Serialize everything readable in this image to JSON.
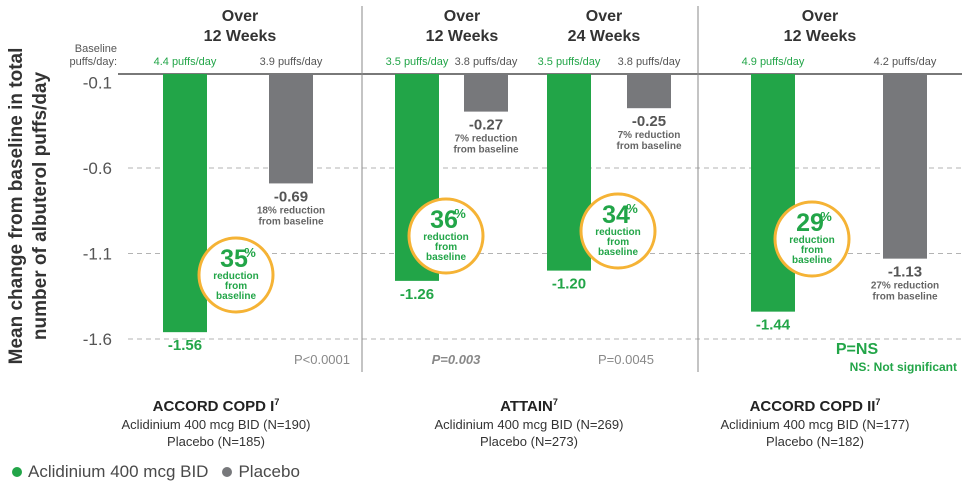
{
  "colors": {
    "aclidinium": "#22a548",
    "placebo": "#77787b",
    "badge": "#f5b335",
    "axis": "#4d4d4d",
    "grid": "#b3b3b3"
  },
  "chart_data": {
    "type": "bar",
    "ylabel_lines": [
      "Mean change from baseline in total",
      "number of albuterol puffs/day"
    ],
    "ylim": [
      -1.6,
      -0.05
    ],
    "y_ticks": [
      "-0.1",
      "-0.6",
      "-1.1",
      "-1.6"
    ],
    "y_tick_values": [
      -0.1,
      -0.6,
      -1.1,
      -1.6
    ],
    "grid": "dashed",
    "baseline_label_lines": [
      "Baseline",
      "puffs/day:"
    ],
    "legend_position": "bottom-left",
    "legend": [
      "Aclidinium 400 mcg BID",
      "Placebo"
    ],
    "panels": [
      {
        "study": "ACCORD COPD I",
        "study_sup": "7",
        "arm_lines": [
          "Aclidinium 400 mcg BID (N=190)",
          "Placebo (N=185)"
        ],
        "p_value": "P<0.0001",
        "groups": [
          {
            "period_lines": [
              "Over",
              "12 Weeks"
            ],
            "bars": [
              {
                "series": "Aclidinium 400 mcg BID",
                "value": -1.56,
                "value_label": "-1.56",
                "baseline": "4.4 puffs/day",
                "reduction_pct": "35%",
                "reduction_lines": [
                  "reduction",
                  "from",
                  "baseline"
                ]
              },
              {
                "series": "Placebo",
                "value": -0.69,
                "value_label": "-0.69",
                "baseline": "3.9 puffs/day",
                "note_lines": [
                  "18% reduction",
                  "from baseline"
                ]
              }
            ]
          }
        ]
      },
      {
        "study": "ATTAIN",
        "study_sup": "7",
        "arm_lines": [
          "Aclidinium 400 mcg BID (N=269)",
          "Placebo (N=273)"
        ],
        "groups": [
          {
            "period_lines": [
              "Over",
              "12 Weeks"
            ],
            "p_value": "P=0.003",
            "bars": [
              {
                "series": "Aclidinium 400 mcg BID",
                "value": -1.26,
                "value_label": "-1.26",
                "baseline": "3.5 puffs/day",
                "reduction_pct": "36%",
                "reduction_lines": [
                  "reduction",
                  "from",
                  "baseline"
                ]
              },
              {
                "series": "Placebo",
                "value": -0.27,
                "value_label": "-0.27",
                "baseline": "3.8 puffs/day",
                "note_lines": [
                  "7% reduction",
                  "from baseline"
                ]
              }
            ]
          },
          {
            "period_lines": [
              "Over",
              "24 Weeks"
            ],
            "p_value": "P=0.0045",
            "bars": [
              {
                "series": "Aclidinium 400 mcg BID",
                "value": -1.2,
                "value_label": "-1.20",
                "baseline": "3.5 puffs/day",
                "reduction_pct": "34%",
                "reduction_lines": [
                  "reduction",
                  "from",
                  "baseline"
                ]
              },
              {
                "series": "Placebo",
                "value": -0.25,
                "value_label": "-0.25",
                "baseline": "3.8 puffs/day",
                "note_lines": [
                  "7% reduction",
                  "from baseline"
                ]
              }
            ]
          }
        ]
      },
      {
        "study": "ACCORD COPD II",
        "study_sup": "7",
        "arm_lines": [
          "Aclidinium 400 mcg BID (N=177)",
          "Placebo (N=182)"
        ],
        "p_value": "P=NS",
        "p_note": "NS: Not significant",
        "groups": [
          {
            "period_lines": [
              "Over",
              "12 Weeks"
            ],
            "bars": [
              {
                "series": "Aclidinium 400 mcg BID",
                "value": -1.44,
                "value_label": "-1.44",
                "baseline": "4.9 puffs/day",
                "reduction_pct": "29%",
                "reduction_lines": [
                  "reduction",
                  "from",
                  "baseline"
                ]
              },
              {
                "series": "Placebo",
                "value": -1.13,
                "value_label": "-1.13",
                "baseline": "4.2 puffs/day",
                "note_lines": [
                  "27% reduction",
                  "from baseline"
                ]
              }
            ]
          }
        ]
      }
    ]
  }
}
